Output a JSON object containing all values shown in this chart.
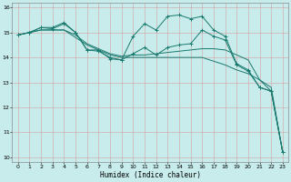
{
  "xlabel": "Humidex (Indice chaleur)",
  "bg_color": "#c8ecec",
  "grid_color": "#d4a0a0",
  "line_color": "#1a7a6e",
  "xlim": [
    -0.5,
    23.5
  ],
  "ylim": [
    9.8,
    16.2
  ],
  "xticks": [
    0,
    1,
    2,
    3,
    4,
    5,
    6,
    7,
    8,
    9,
    10,
    11,
    12,
    13,
    14,
    15,
    16,
    17,
    18,
    19,
    20,
    21,
    22,
    23
  ],
  "yticks": [
    10,
    11,
    12,
    13,
    14,
    15,
    16
  ],
  "line1_zigzag": {
    "x": [
      0,
      1,
      2,
      3,
      4,
      5,
      6,
      7,
      8,
      9,
      10,
      11,
      12,
      13,
      14,
      15,
      16,
      17,
      18,
      19,
      20,
      21,
      22,
      23
    ],
    "y": [
      14.9,
      15.0,
      15.2,
      15.2,
      15.4,
      15.0,
      14.3,
      14.3,
      13.95,
      13.9,
      14.85,
      15.35,
      15.1,
      15.65,
      15.7,
      15.55,
      15.65,
      15.1,
      14.85,
      13.75,
      13.5,
      12.8,
      12.65,
      10.2
    ]
  },
  "line2_smooth": {
    "x": [
      0,
      1,
      2,
      3,
      4,
      5,
      6,
      7,
      8,
      9,
      10,
      11,
      12,
      13,
      14,
      15,
      16,
      17,
      18,
      19,
      20,
      21,
      22,
      23
    ],
    "y": [
      14.9,
      15.0,
      15.1,
      15.1,
      15.1,
      14.8,
      14.5,
      14.3,
      14.1,
      14.0,
      14.0,
      14.0,
      14.0,
      14.0,
      14.0,
      14.0,
      14.0,
      13.85,
      13.7,
      13.5,
      13.35,
      13.1,
      12.8,
      10.2
    ]
  },
  "line3_smooth2": {
    "x": [
      0,
      1,
      2,
      3,
      4,
      5,
      6,
      7,
      8,
      9,
      10,
      11,
      12,
      13,
      14,
      15,
      16,
      17,
      18,
      19,
      20,
      21,
      22,
      23
    ],
    "y": [
      14.9,
      15.0,
      15.1,
      15.1,
      15.1,
      14.9,
      14.55,
      14.35,
      14.15,
      14.05,
      14.1,
      14.1,
      14.15,
      14.2,
      14.25,
      14.3,
      14.35,
      14.35,
      14.3,
      14.1,
      13.9,
      13.1,
      12.65,
      10.2
    ]
  },
  "line4_zigzag2": {
    "x": [
      0,
      1,
      2,
      3,
      4,
      5,
      6,
      7,
      8,
      9,
      10,
      11,
      12,
      13,
      14,
      15,
      16,
      17,
      18,
      19,
      20,
      21,
      22,
      23
    ],
    "y": [
      14.9,
      15.0,
      15.2,
      15.15,
      15.35,
      15.0,
      14.3,
      14.25,
      14.0,
      13.9,
      14.15,
      14.4,
      14.1,
      14.4,
      14.5,
      14.55,
      15.1,
      14.85,
      14.7,
      13.7,
      13.45,
      12.8,
      12.65,
      10.2
    ]
  }
}
